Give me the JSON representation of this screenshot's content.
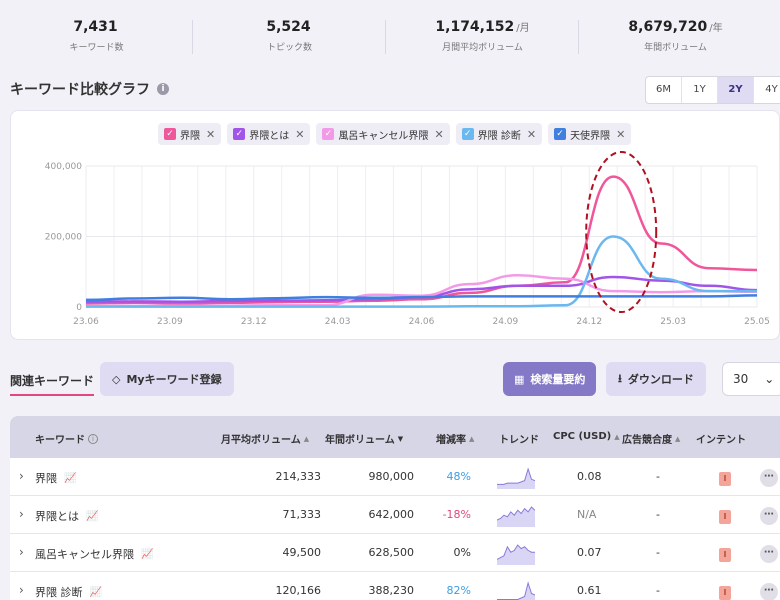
{
  "stats": [
    {
      "value": "7,431",
      "unit": "",
      "label": "キーワード数"
    },
    {
      "value": "5,524",
      "unit": "",
      "label": "トピック数"
    },
    {
      "value": "1,174,152",
      "unit": "/月",
      "label": "月間平均ボリューム"
    },
    {
      "value": "8,679,720",
      "unit": "/年",
      "label": "年間ボリューム"
    }
  ],
  "chart_section": {
    "title": "キーワード比較グラフ",
    "info_icon": "i",
    "periods": [
      {
        "label": "6M",
        "active": false
      },
      {
        "label": "1Y",
        "active": false
      },
      {
        "label": "2Y",
        "active": true
      },
      {
        "label": "4Y",
        "active": false
      }
    ]
  },
  "legend": [
    {
      "label": "界隈",
      "color": "#f0569a"
    },
    {
      "label": "界隈とは",
      "color": "#a155e8"
    },
    {
      "label": "風呂キャンセル界隈",
      "color": "#f29ae8"
    },
    {
      "label": "界隈 診断",
      "color": "#6ab8f0"
    },
    {
      "label": "天使界隈",
      "color": "#3f7fe0"
    }
  ],
  "chart_data": {
    "type": "line",
    "x": [
      "23.06",
      "23.08",
      "23.10",
      "23.12",
      "24.02",
      "24.04",
      "24.06",
      "24.08",
      "24.10",
      "24.12",
      "25.01",
      "25.02",
      "25.03",
      "25.04",
      "25.05"
    ],
    "xticks": [
      "23.06",
      "23.09",
      "23.12",
      "24.03",
      "24.06",
      "24.09",
      "24.12",
      "25.03",
      "25.05"
    ],
    "yticks": [
      "0",
      "200,000",
      "400,000"
    ],
    "ylim": [
      0,
      400000
    ],
    "annotation": "dashed-ellipse around 25.03 peak",
    "series": [
      {
        "name": "界隈",
        "color": "#f0569a",
        "values": [
          10000,
          12000,
          10000,
          12000,
          14000,
          15000,
          18000,
          22000,
          40000,
          60000,
          70000,
          370000,
          180000,
          110000,
          105000
        ]
      },
      {
        "name": "界隈とは",
        "color": "#a155e8",
        "values": [
          15000,
          16000,
          15000,
          17000,
          18000,
          19000,
          22000,
          28000,
          50000,
          60000,
          60000,
          85000,
          75000,
          60000,
          48000
        ]
      },
      {
        "name": "風呂キャンセル界隈",
        "color": "#f29ae8",
        "values": [
          2000,
          3000,
          3000,
          4000,
          5000,
          5000,
          35000,
          32000,
          65000,
          90000,
          80000,
          45000,
          42000,
          45000,
          43000
        ]
      },
      {
        "name": "界隈 診断",
        "color": "#6ab8f0",
        "values": [
          1000,
          1000,
          1000,
          1000,
          1000,
          1000,
          1000,
          1000,
          2000,
          2000,
          5000,
          200000,
          80000,
          45000,
          45000
        ]
      },
      {
        "name": "天使界隈",
        "color": "#3f7fe0",
        "values": [
          20000,
          24000,
          26000,
          22000,
          25000,
          28000,
          26000,
          28000,
          30000,
          30000,
          30000,
          30000,
          30000,
          30000,
          33000
        ]
      }
    ]
  },
  "toolbar": {
    "tab_related": "関連キーワード",
    "my_keyword_btn": "Myキーワード登録",
    "summary_btn": "検索量要約",
    "download_btn": "ダウンロード",
    "page_size": "30"
  },
  "table": {
    "headers": {
      "keyword": "キーワード",
      "monthly": "月平均ボリューム",
      "yearly": "年間ボリューム",
      "growth": "増減率",
      "trend": "トレンド",
      "cpc": "CPC (USD)",
      "competition": "広告競合度",
      "intent": "インテント"
    },
    "rows": [
      {
        "keyword": "界隈",
        "monthly": "214,333",
        "yearly": "980,000",
        "growth": "48%",
        "growth_dir": "pos",
        "cpc": "0.08",
        "competition": "-",
        "intent": "I",
        "spark": [
          2,
          2,
          2,
          3,
          3,
          3,
          3,
          4,
          5,
          14,
          6,
          5
        ]
      },
      {
        "keyword": "界隈とは",
        "monthly": "71,333",
        "yearly": "642,000",
        "growth": "-18%",
        "growth_dir": "neg",
        "cpc": "N/A",
        "competition": "-",
        "intent": "I",
        "spark": [
          3,
          4,
          6,
          5,
          8,
          6,
          9,
          7,
          10,
          8,
          11,
          9
        ]
      },
      {
        "keyword": "風呂キャンセル界隈",
        "monthly": "49,500",
        "yearly": "628,500",
        "growth": "0%",
        "growth_dir": "zero",
        "cpc": "0.07",
        "competition": "-",
        "intent": "I",
        "spark": [
          2,
          3,
          4,
          9,
          6,
          7,
          10,
          8,
          9,
          7,
          6,
          6
        ]
      },
      {
        "keyword": "界隈 診断",
        "monthly": "120,166",
        "yearly": "388,230",
        "growth": "82%",
        "growth_dir": "pos",
        "cpc": "0.61",
        "competition": "-",
        "intent": "I",
        "spark": [
          1,
          1,
          1,
          1,
          1,
          1,
          1,
          2,
          3,
          12,
          5,
          4
        ]
      }
    ]
  },
  "icons": {
    "chevron": "›",
    "trend": "📈",
    "more": "⋯",
    "check": "✓",
    "close": "✕",
    "diamond": "◇",
    "table_icon": "▦",
    "download": "⭳",
    "select_chevron": "⌄"
  }
}
